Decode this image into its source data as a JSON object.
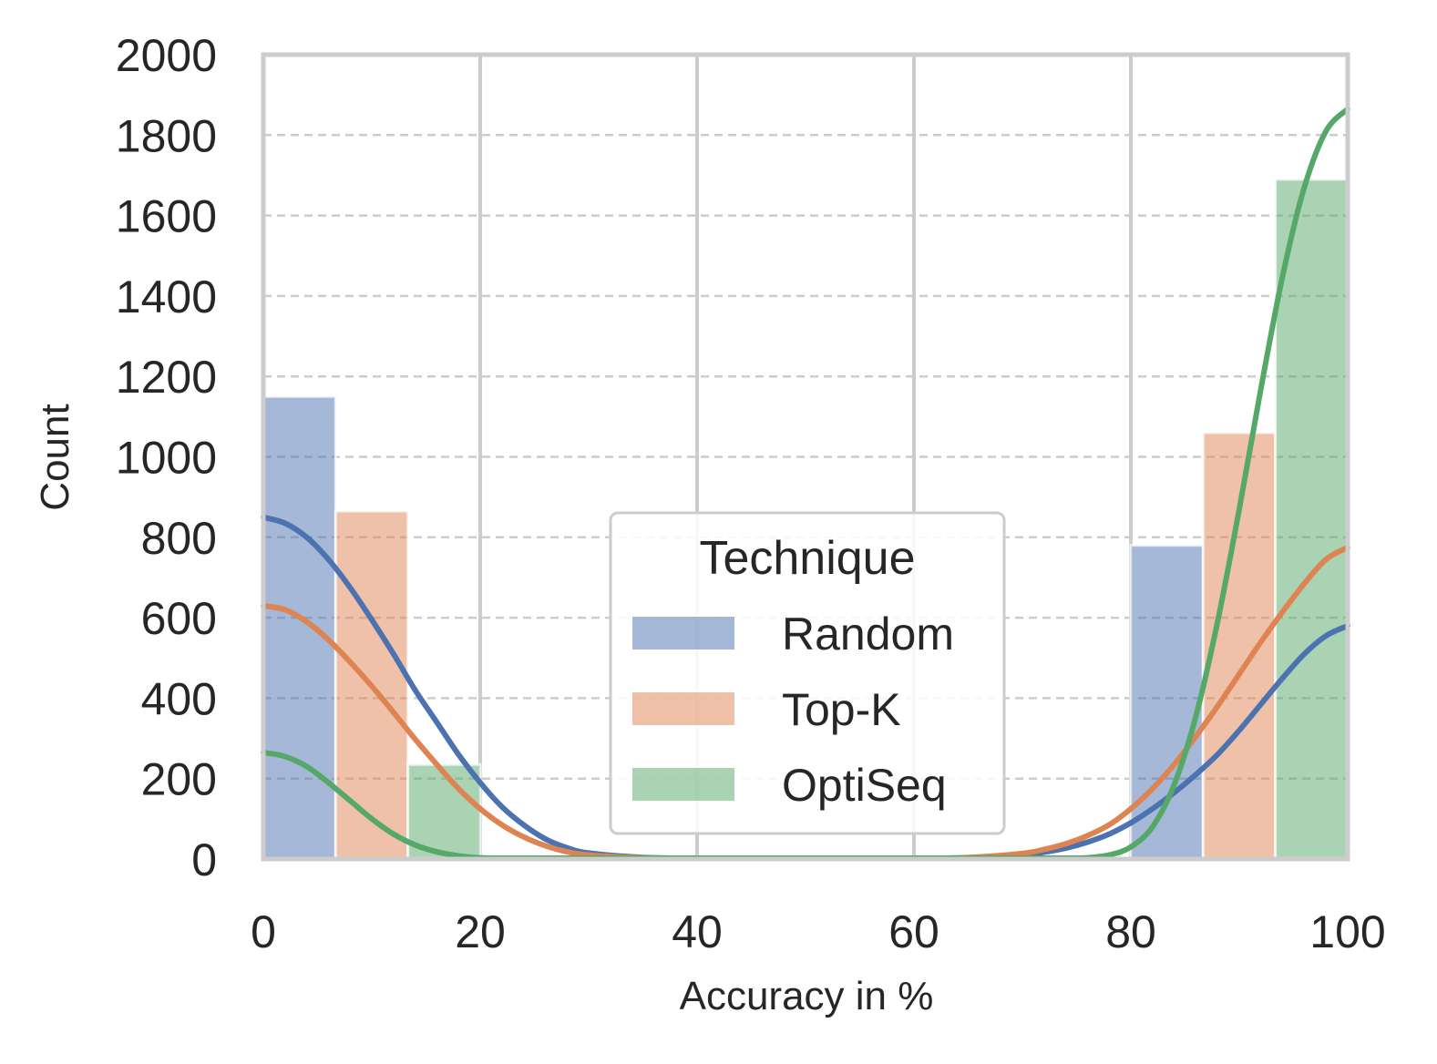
{
  "chart_data": {
    "type": "histogram",
    "title": "",
    "xlabel": "Accuracy in %",
    "ylabel": "Count",
    "xlim": [
      0,
      100
    ],
    "ylim": [
      0,
      2000
    ],
    "x_ticks": [
      "0",
      "20",
      "40",
      "60",
      "80",
      "100"
    ],
    "y_ticks": [
      "0",
      "200",
      "400",
      "600",
      "800",
      "1000",
      "1200",
      "1400",
      "1600",
      "1800",
      "2000"
    ],
    "bin_edges": [
      0,
      20,
      80,
      100
    ],
    "legend": {
      "title": "Technique",
      "placement": "lower center"
    },
    "series": [
      {
        "name": "Random",
        "color": "#4c72b0",
        "bars": [
          {
            "bin": [
              0,
              20
            ],
            "value": 1150
          },
          {
            "bin": [
              80,
              100
            ],
            "value": 780
          }
        ],
        "kde": {
          "x": [
            0,
            2,
            4,
            6,
            8,
            10,
            12,
            14,
            16,
            18,
            20,
            22,
            24,
            26,
            28,
            30,
            35,
            40,
            60,
            65,
            70,
            72,
            74,
            76,
            78,
            80,
            82,
            84,
            86,
            88,
            90,
            92,
            94,
            96,
            98,
            100
          ],
          "y": [
            850,
            835,
            800,
            745,
            675,
            595,
            510,
            420,
            340,
            260,
            190,
            130,
            85,
            50,
            28,
            15,
            4,
            0,
            0,
            3,
            10,
            17,
            27,
            42,
            62,
            90,
            125,
            165,
            210,
            260,
            320,
            385,
            450,
            510,
            555,
            580
          ]
        }
      },
      {
        "name": "Top-K",
        "color": "#dd8452",
        "bars": [
          {
            "bin": [
              0,
              20
            ],
            "value": 865
          },
          {
            "bin": [
              80,
              100
            ],
            "value": 1060
          }
        ],
        "kde": {
          "x": [
            0,
            2,
            4,
            6,
            8,
            10,
            12,
            14,
            16,
            18,
            20,
            22,
            24,
            26,
            28,
            30,
            35,
            40,
            60,
            65,
            70,
            72,
            74,
            76,
            78,
            80,
            82,
            84,
            86,
            88,
            90,
            92,
            94,
            96,
            98,
            100
          ],
          "y": [
            630,
            620,
            590,
            545,
            490,
            430,
            365,
            298,
            235,
            175,
            125,
            85,
            55,
            33,
            18,
            10,
            3,
            0,
            0,
            4,
            14,
            24,
            38,
            58,
            85,
            125,
            175,
            235,
            305,
            380,
            460,
            540,
            615,
            685,
            745,
            775
          ]
        }
      },
      {
        "name": "OptiSeq",
        "color": "#55a868",
        "bars": [
          {
            "bin": [
              0,
              20
            ],
            "value": 235
          },
          {
            "bin": [
              80,
              100
            ],
            "value": 1690
          }
        ],
        "kde": {
          "x": [
            0,
            2,
            4,
            6,
            8,
            10,
            12,
            14,
            16,
            18,
            20,
            22,
            24,
            26,
            28,
            30,
            40,
            60,
            70,
            74,
            76,
            78,
            80,
            82,
            84,
            86,
            88,
            90,
            92,
            94,
            96,
            98,
            100
          ],
          "y": [
            265,
            255,
            230,
            190,
            145,
            100,
            62,
            35,
            18,
            8,
            3,
            1,
            0,
            0,
            0,
            0,
            0,
            0,
            0,
            1,
            3,
            10,
            30,
            80,
            185,
            355,
            590,
            870,
            1170,
            1450,
            1670,
            1810,
            1865
          ]
        }
      }
    ]
  }
}
